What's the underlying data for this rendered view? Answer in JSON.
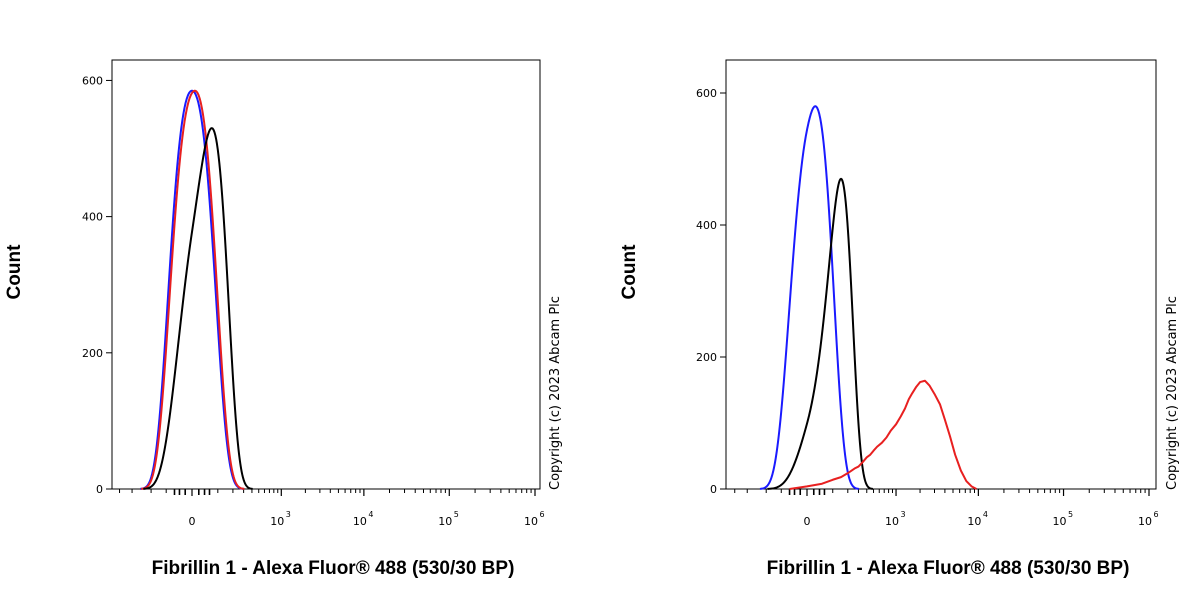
{
  "chart_data": [
    {
      "type": "line",
      "ylabel": "Count",
      "xlabel": "Fibrillin 1 - Alexa Fluor® 488 (530/30 BP)",
      "copyright": "Copyright (c) 2023 Abcam Plc",
      "x_scale": "biexponential",
      "ylim": [
        0,
        630
      ],
      "yticks": [
        0,
        200,
        400,
        600
      ],
      "xticks": [
        {
          "value": 0,
          "label": "0"
        },
        {
          "value": 1000,
          "base": "10",
          "exp": "3"
        },
        {
          "value": 10000,
          "base": "10",
          "exp": "4"
        },
        {
          "value": 100000,
          "base": "10",
          "exp": "5"
        },
        {
          "value": 1000000,
          "base": "10",
          "exp": "6"
        }
      ],
      "grid": false,
      "series": [
        {
          "color": "#1a1aff",
          "kind": "gauss",
          "peak_x": 0,
          "peak_y": 585,
          "sigma": 75
        },
        {
          "color": "#e82020",
          "kind": "gauss",
          "peak_x": 8,
          "peak_y": 585,
          "sigma": 75
        },
        {
          "color": "#000000",
          "kind": "gauss",
          "peak_x": 70,
          "peak_y": 530,
          "sigma": 85
        }
      ]
    },
    {
      "type": "line",
      "ylabel": "Count",
      "xlabel": "Fibrillin 1 - Alexa Fluor® 488 (530/30 BP)",
      "copyright": "Copyright (c) 2023 Abcam Plc",
      "x_scale": "biexponential",
      "ylim": [
        0,
        650
      ],
      "yticks": [
        0,
        200,
        400,
        600
      ],
      "xticks": [
        {
          "value": 0,
          "label": "0"
        },
        {
          "value": 1000,
          "base": "10",
          "exp": "3"
        },
        {
          "value": 10000,
          "base": "10",
          "exp": "4"
        },
        {
          "value": 100000,
          "base": "10",
          "exp": "5"
        },
        {
          "value": 1000000,
          "base": "10",
          "exp": "6"
        }
      ],
      "grid": false,
      "series": [
        {
          "color": "#1a1aff",
          "kind": "gauss",
          "peak_x": 25,
          "peak_y": 580,
          "sigma": 70
        },
        {
          "color": "#000000",
          "kind": "gauss",
          "peak_x": 150,
          "peak_y": 470,
          "sigma": 85
        },
        {
          "color": "#e82020",
          "kind": "points",
          "x": [
            -60,
            0,
            50,
            100,
            150,
            200,
            260,
            300,
            350,
            400,
            450,
            500,
            560,
            650,
            750,
            850,
            1000,
            1150,
            1300,
            1450,
            1600,
            1800,
            2000,
            2300,
            2600,
            3000,
            3500,
            4000,
            4600,
            5300,
            6200,
            7200,
            8300,
            9500
          ],
          "y": [
            0,
            4,
            8,
            14,
            18,
            24,
            31,
            34,
            41,
            48,
            52,
            58,
            64,
            70,
            78,
            88,
            98,
            110,
            122,
            136,
            145,
            155,
            162,
            164,
            157,
            144,
            128,
            105,
            80,
            52,
            28,
            12,
            4,
            0
          ]
        }
      ]
    }
  ]
}
